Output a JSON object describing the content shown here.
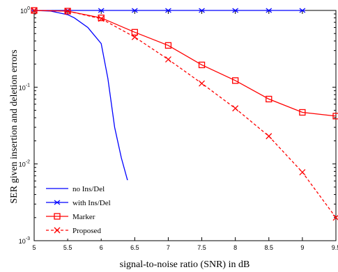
{
  "chart_data": {
    "type": "line",
    "xlabel": "signal-to-noise ratio (SNR) in dB",
    "ylabel": "SER given insertion and deletion errors",
    "xlim": [
      5,
      9.5
    ],
    "ylim": [
      0.001,
      1
    ],
    "yscale": "log",
    "grid": false,
    "legend_position": "bottom-left",
    "x_ticks": [
      "5",
      "5.5",
      "6",
      "6.5",
      "7",
      "7.5",
      "8",
      "8.5",
      "9",
      "9.5"
    ],
    "y_ticks": [
      {
        "base": "10",
        "exp": "0"
      },
      {
        "base": "10",
        "exp": "-1"
      },
      {
        "base": "10",
        "exp": "-2"
      },
      {
        "base": "10",
        "exp": "-3"
      }
    ],
    "series": [
      {
        "name": "no Ins/Del",
        "color": "#0000ff",
        "style": "solid",
        "marker": "none",
        "x": [
          5,
          5.25,
          5.5,
          5.6,
          5.8,
          6.0,
          6.1,
          6.2,
          6.3,
          6.4
        ],
        "y": [
          1.0,
          0.98,
          0.88,
          0.8,
          0.6,
          0.37,
          0.13,
          0.03,
          0.012,
          0.0058
        ]
      },
      {
        "name": "with Ins/Del",
        "color": "#0000ff",
        "style": "solid",
        "marker": "asterisk",
        "x": [
          5,
          5.5,
          6,
          6.5,
          7,
          7.5,
          8,
          8.5,
          9
        ],
        "y": [
          1,
          1,
          1,
          1,
          1,
          1,
          1,
          1,
          1
        ]
      },
      {
        "name": "Marker",
        "color": "#ff0000",
        "style": "solid",
        "marker": "square",
        "x": [
          5,
          5.5,
          6,
          6.5,
          7,
          7.5,
          8,
          8.5,
          9,
          9.5
        ],
        "y": [
          1.0,
          0.98,
          0.8,
          0.52,
          0.35,
          0.195,
          0.122,
          0.07,
          0.047,
          0.042
        ]
      },
      {
        "name": "Proposed",
        "color": "#ff0000",
        "style": "dashed",
        "marker": "x",
        "x": [
          5,
          5.5,
          6,
          6.5,
          7,
          7.5,
          8,
          8.5,
          9,
          9.5
        ],
        "y": [
          1.0,
          0.98,
          0.78,
          0.45,
          0.23,
          0.112,
          0.053,
          0.023,
          0.0078,
          0.002
        ]
      }
    ]
  }
}
